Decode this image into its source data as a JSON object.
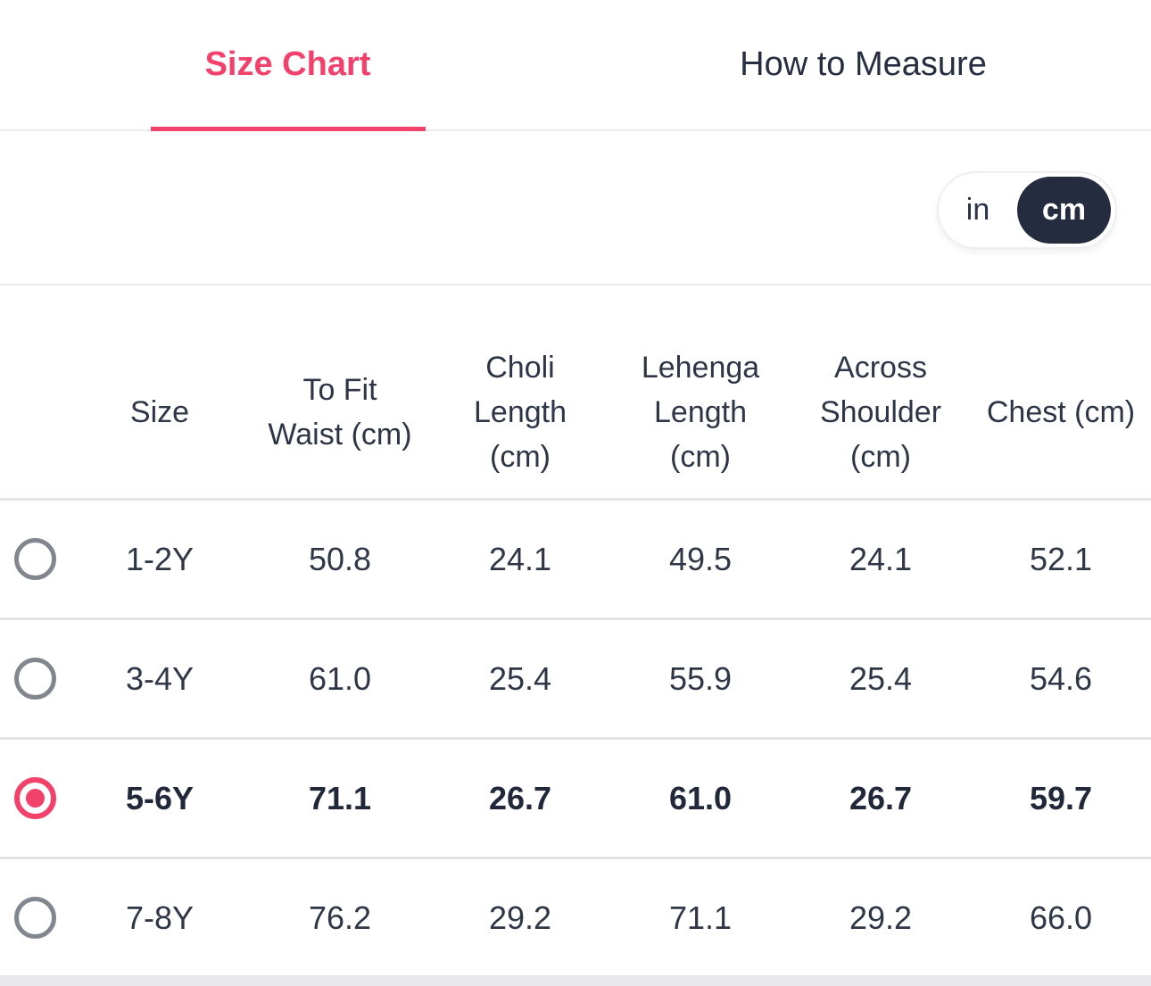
{
  "tabs": [
    {
      "label": "Size Chart",
      "active": true
    },
    {
      "label": "How to Measure",
      "active": false
    }
  ],
  "unit_toggle": {
    "options": [
      "in",
      "cm"
    ],
    "selected": "cm"
  },
  "size_table": {
    "columns": [
      {
        "label": "Size"
      },
      {
        "label": "To Fit\nWaist (cm)"
      },
      {
        "label": "Choli\nLength\n(cm)"
      },
      {
        "label": "Lehenga\nLength\n(cm)"
      },
      {
        "label": "Across\nShoulder\n(cm)"
      },
      {
        "label": "Chest (cm)"
      }
    ],
    "rows": [
      {
        "size": "1-2Y",
        "values": [
          "50.8",
          "24.1",
          "49.5",
          "24.1",
          "52.1"
        ],
        "selected": false
      },
      {
        "size": "3-4Y",
        "values": [
          "61.0",
          "25.4",
          "55.9",
          "25.4",
          "54.6"
        ],
        "selected": false
      },
      {
        "size": "5-6Y",
        "values": [
          "71.1",
          "26.7",
          "61.0",
          "26.7",
          "59.7"
        ],
        "selected": true
      },
      {
        "size": "7-8Y",
        "values": [
          "76.2",
          "29.2",
          "71.1",
          "29.2",
          "66.0"
        ],
        "selected": false
      }
    ]
  },
  "colors": {
    "accent_pink": "#F2416B",
    "toggle_dark": "#252C3F",
    "text_dark": "#2E3547",
    "radio_gray": "#82868F",
    "divider": "#E4E4E6"
  }
}
